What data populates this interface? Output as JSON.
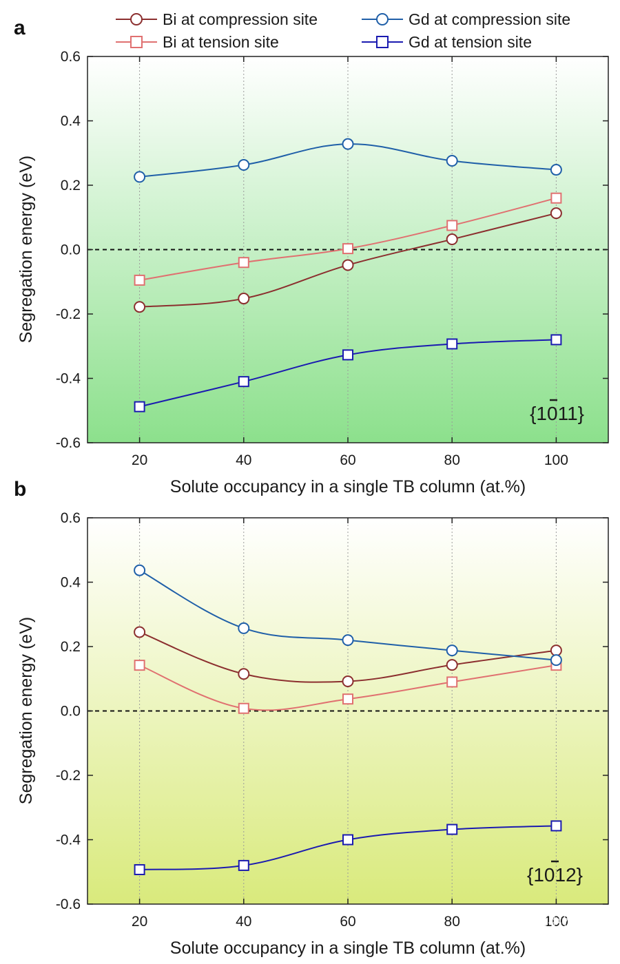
{
  "legend": [
    {
      "label": "Bi at compression site",
      "color": "#8B2E2E",
      "marker": "circle"
    },
    {
      "label": "Bi at tension site",
      "color": "#E07070",
      "marker": "square"
    },
    {
      "label": "Gd at compression site",
      "color": "#1F5FA8",
      "marker": "circle"
    },
    {
      "label": "Gd at tension site",
      "color": "#1A1AB0",
      "marker": "square"
    }
  ],
  "watermark": {
    "text": "重庆大学图书馆"
  },
  "chart_data": [
    {
      "type": "line",
      "panel": "a",
      "facet_label": {
        "pre": "{10",
        "bar1": "1",
        "mid": "",
        "bar2": "1",
        "post": "}"
      },
      "facet_plain": "{1011}",
      "xlabel": "Solute occupancy in a single TB column (at.%)",
      "ylabel": "Segregation energy (eV)",
      "x": [
        20,
        40,
        60,
        80,
        100
      ],
      "xticks": [
        "20",
        "40",
        "60",
        "80",
        "100"
      ],
      "yticks": [
        "0.6",
        "0.4",
        "0.2",
        "0.0",
        "-0.2",
        "-0.4",
        "-0.6"
      ],
      "xlim": [
        10,
        110
      ],
      "ylim": [
        -0.6,
        0.6
      ],
      "grid": "vertical dotted",
      "reference_line": 0.0,
      "background": {
        "top": "#ffffff",
        "bottom": "#8ce08c"
      },
      "series": [
        {
          "name": "Bi at compression site",
          "values": [
            -0.178,
            -0.152,
            -0.048,
            0.032,
            0.113
          ]
        },
        {
          "name": "Bi at tension site",
          "values": [
            -0.095,
            -0.04,
            0.003,
            0.075,
            0.16
          ]
        },
        {
          "name": "Gd at compression site",
          "values": [
            0.226,
            0.263,
            0.328,
            0.276,
            0.248
          ]
        },
        {
          "name": "Gd at tension site",
          "values": [
            -0.488,
            -0.41,
            -0.327,
            -0.293,
            -0.28
          ]
        }
      ]
    },
    {
      "type": "line",
      "panel": "b",
      "facet_label": {
        "pre": "{10",
        "bar1": "1",
        "mid": "",
        "bar2": "",
        "post": "2}"
      },
      "facet_plain": "{1012}",
      "xlabel": "Solute occupancy in a single TB column (at.%)",
      "ylabel": "Segregation energy (eV)",
      "x": [
        20,
        40,
        60,
        80,
        100
      ],
      "xticks": [
        "20",
        "40",
        "60",
        "80",
        "100"
      ],
      "yticks": [
        "0.6",
        "0.4",
        "0.2",
        "0.0",
        "-0.2",
        "-0.4",
        "-0.6"
      ],
      "xlim": [
        10,
        110
      ],
      "ylim": [
        -0.6,
        0.6
      ],
      "grid": "vertical dotted",
      "reference_line": 0.0,
      "background": {
        "top": "#ffffff",
        "bottom": "#d9ea7c"
      },
      "series": [
        {
          "name": "Bi at compression site",
          "values": [
            0.245,
            0.115,
            0.092,
            0.143,
            0.188
          ]
        },
        {
          "name": "Bi at tension site",
          "values": [
            0.142,
            0.008,
            0.037,
            0.09,
            0.142
          ]
        },
        {
          "name": "Gd at compression site",
          "values": [
            0.437,
            0.257,
            0.22,
            0.188,
            0.158
          ]
        },
        {
          "name": "Gd at tension site",
          "values": [
            -0.493,
            -0.48,
            -0.4,
            -0.368,
            -0.357
          ]
        }
      ]
    }
  ]
}
